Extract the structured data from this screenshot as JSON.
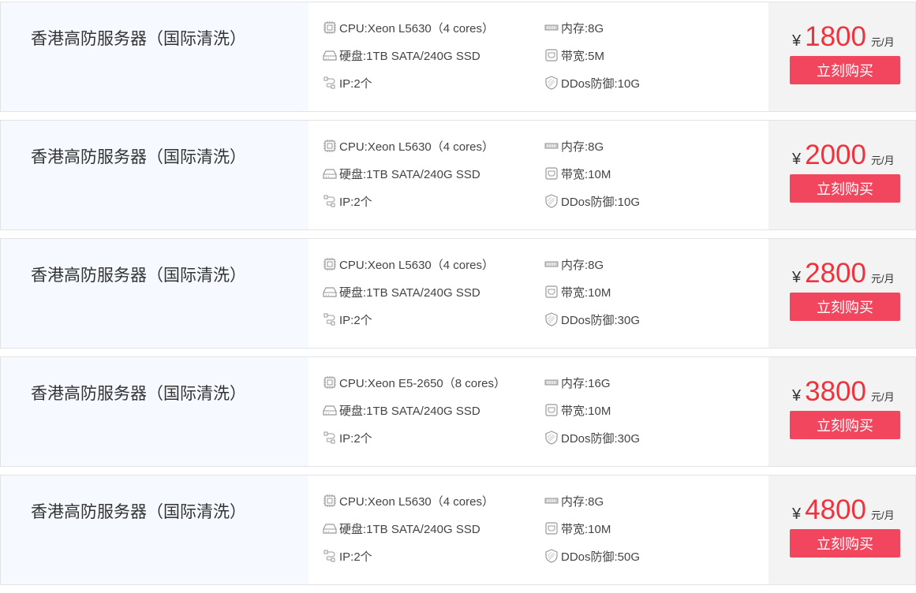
{
  "products": [
    {
      "name": "香港高防服务器（国际清洗）",
      "cpu": "CPU:Xeon L5630（4 cores）",
      "memory": "内存:8G",
      "disk": "硬盘:1TB SATA/240G SSD",
      "bandwidth": "带宽:5M",
      "ip": "IP:2个",
      "ddos": "DDos防御:10G",
      "currency": "¥",
      "price": "1800",
      "unit": "元/月",
      "buy_label": "立刻购买"
    },
    {
      "name": "香港高防服务器（国际清洗）",
      "cpu": "CPU:Xeon L5630（4 cores）",
      "memory": "内存:8G",
      "disk": "硬盘:1TB SATA/240G SSD",
      "bandwidth": "带宽:10M",
      "ip": "IP:2个",
      "ddos": "DDos防御:10G",
      "currency": "¥",
      "price": "2000",
      "unit": "元/月",
      "buy_label": "立刻购买"
    },
    {
      "name": "香港高防服务器（国际清洗）",
      "cpu": "CPU:Xeon L5630（4 cores）",
      "memory": "内存:8G",
      "disk": "硬盘:1TB SATA/240G SSD",
      "bandwidth": "带宽:10M",
      "ip": "IP:2个",
      "ddos": "DDos防御:30G",
      "currency": "¥",
      "price": "2800",
      "unit": "元/月",
      "buy_label": "立刻购买"
    },
    {
      "name": "香港高防服务器（国际清洗）",
      "cpu": "CPU:Xeon E5-2650（8 cores）",
      "memory": "内存:16G",
      "disk": "硬盘:1TB SATA/240G SSD",
      "bandwidth": "带宽:10M",
      "ip": "IP:2个",
      "ddos": "DDos防御:30G",
      "currency": "¥",
      "price": "3800",
      "unit": "元/月",
      "buy_label": "立刻购买"
    },
    {
      "name": "香港高防服务器（国际清洗）",
      "cpu": "CPU:Xeon L5630（4 cores）",
      "memory": "内存:8G",
      "disk": "硬盘:1TB SATA/240G SSD",
      "bandwidth": "带宽:10M",
      "ip": "IP:2个",
      "ddos": "DDos防御:50G",
      "currency": "¥",
      "price": "4800",
      "unit": "元/月",
      "buy_label": "立刻购买"
    }
  ],
  "colors": {
    "price": "#f0323c",
    "button": "#f2465e",
    "name_bg": "#f6f9ff",
    "price_bg": "#f3f3f3"
  }
}
